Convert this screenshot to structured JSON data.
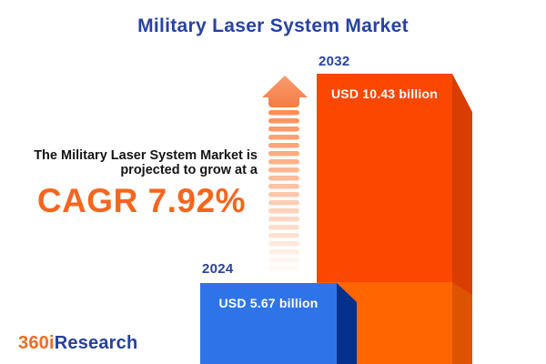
{
  "title": "Military Laser System Market",
  "tagline": {
    "line1": "The Military Laser System Market is",
    "line2": "projected to grow at a",
    "cagr": "CAGR 7.92%"
  },
  "bars": {
    "y2024": {
      "year": "2024",
      "value_label": "USD 5.67 billion"
    },
    "y2032": {
      "year": "2032",
      "value_label": "USD 10.43 billion"
    }
  },
  "logo": {
    "part1": "360i",
    "part2": "Research"
  },
  "icons": {
    "growth_arrow": "up-arrow-dashed-tail-icon"
  },
  "arrow": {
    "stripe_count": 20
  },
  "colors": {
    "background": "#FFFFFF",
    "title_blue": "#2642A5",
    "year_label_blue": "#2843A7",
    "body_text": "#151515",
    "cagr_orange": "#F4661E",
    "bar_2032_front": "#FB4700",
    "bar_2032_side": "#D93D02",
    "bar_2032_front_lower": "#FF6600",
    "bar_2032_side_lower": "#DE5300",
    "bar_2024_front": "#2E74E8",
    "bar_2024_side": "#05308C",
    "value_text": "#FFFFFF",
    "arrow_head_top": "#FA9B6E",
    "arrow_head_bottom": "#F47B42",
    "stripe_orange": "#FB9057",
    "logo_orange": "#F26B21",
    "logo_blue": "#25409E"
  },
  "chart_data": {
    "type": "bar",
    "title": "Military Laser System Market",
    "categories": [
      "2024",
      "2032"
    ],
    "values": [
      5.67,
      10.43
    ],
    "unit": "USD billion",
    "data_labels": [
      "USD 5.67 billion",
      "USD 10.43 billion"
    ],
    "annotation": "The Military Laser System Market is projected to grow at a CAGR 7.92%",
    "cagr_percent": 7.92,
    "orientation": "vertical",
    "grid": "off",
    "legend": "off",
    "style": "3d-infographic-bars"
  }
}
